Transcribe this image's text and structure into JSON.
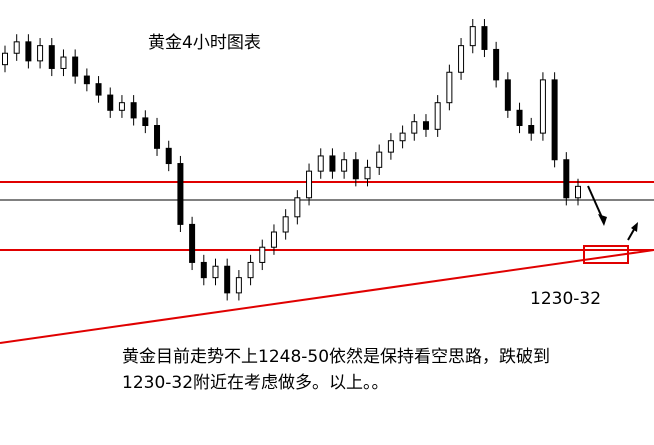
{
  "chart_data": {
    "type": "candlestick",
    "title": "黄金4小时图表",
    "annotation": "1230-32",
    "note_lines": [
      "黄金目前走势不上1248-50依然是保持看空思路，跌破到",
      "1230-32附近在考虑做多。以上。。"
    ],
    "ylim": [
      1180,
      1297
    ],
    "open": [
      1280,
      1283,
      1286,
      1281,
      1285,
      1279,
      1282,
      1277,
      1275,
      1272,
      1268,
      1270,
      1266,
      1264,
      1258,
      1254,
      1238,
      1228,
      1224,
      1227,
      1220,
      1224,
      1228,
      1232,
      1236,
      1240,
      1245,
      1252,
      1256,
      1252,
      1255,
      1250,
      1253,
      1257,
      1260,
      1262,
      1265,
      1263,
      1270,
      1278,
      1285,
      1290,
      1284,
      1276,
      1268,
      1264,
      1262,
      1276,
      1255,
      1245
    ],
    "high": [
      1285,
      1288,
      1288,
      1287,
      1287,
      1284,
      1284,
      1279,
      1277,
      1274,
      1272,
      1272,
      1268,
      1266,
      1260,
      1256,
      1240,
      1230,
      1229,
      1229,
      1226,
      1230,
      1234,
      1238,
      1242,
      1247,
      1254,
      1258,
      1258,
      1257,
      1257,
      1255,
      1259,
      1262,
      1264,
      1267,
      1267,
      1272,
      1280,
      1287,
      1292,
      1292,
      1286,
      1278,
      1270,
      1266,
      1278,
      1278,
      1257,
      1250
    ],
    "low": [
      1278,
      1281,
      1279,
      1279,
      1277,
      1277,
      1275,
      1273,
      1270,
      1266,
      1266,
      1264,
      1262,
      1256,
      1252,
      1236,
      1226,
      1222,
      1222,
      1218,
      1218,
      1222,
      1226,
      1230,
      1234,
      1238,
      1243,
      1250,
      1250,
      1250,
      1248,
      1248,
      1251,
      1255,
      1258,
      1260,
      1261,
      1261,
      1268,
      1276,
      1283,
      1282,
      1274,
      1266,
      1262,
      1260,
      1260,
      1253,
      1243,
      1243
    ],
    "close": [
      1283,
      1286,
      1281,
      1285,
      1279,
      1282,
      1277,
      1275,
      1272,
      1268,
      1270,
      1266,
      1264,
      1258,
      1254,
      1238,
      1228,
      1224,
      1227,
      1220,
      1224,
      1228,
      1232,
      1236,
      1240,
      1245,
      1252,
      1256,
      1252,
      1255,
      1250,
      1253,
      1257,
      1260,
      1262,
      1265,
      1263,
      1270,
      1278,
      1285,
      1290,
      1284,
      1276,
      1268,
      1264,
      1262,
      1276,
      1255,
      1245,
      1248
    ]
  }
}
